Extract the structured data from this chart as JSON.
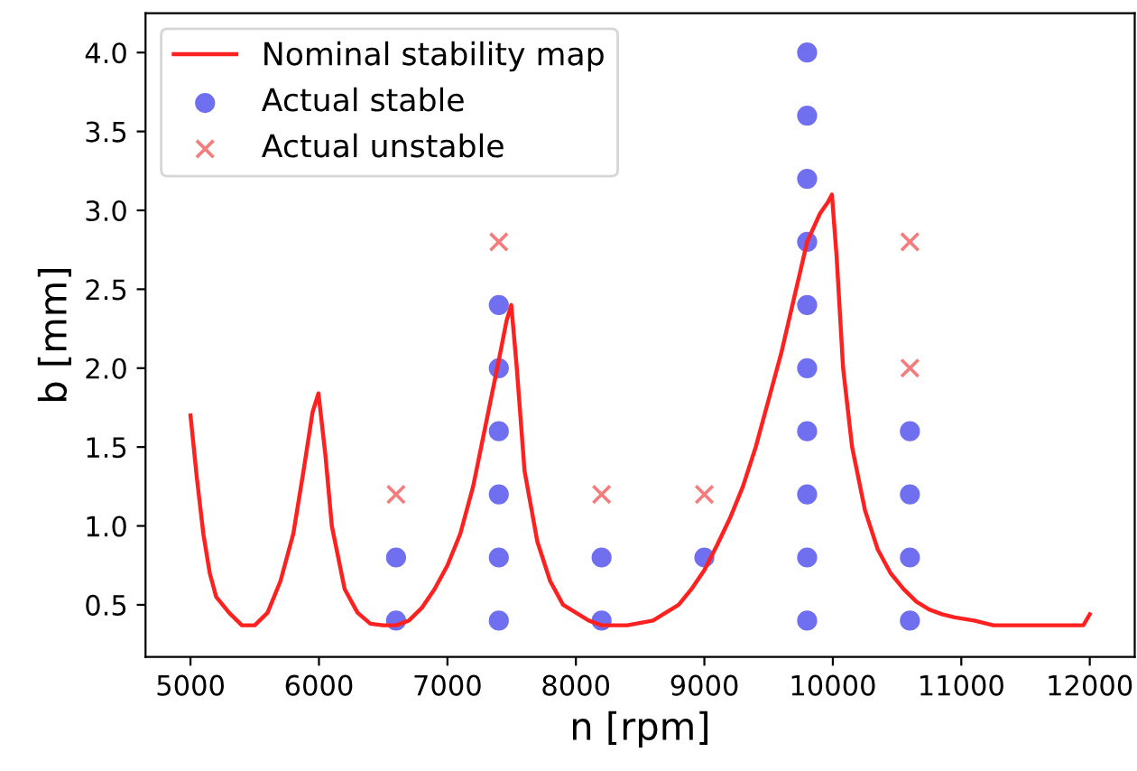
{
  "chart_data": {
    "type": "line",
    "xlabel": "n [rpm]",
    "ylabel": "b [mm]",
    "xlim": [
      4650,
      12350
    ],
    "ylim": [
      0.17,
      4.25
    ],
    "xticks": [
      5000,
      6000,
      7000,
      8000,
      9000,
      10000,
      11000,
      12000
    ],
    "yticks": [
      {
        "value": 0.5,
        "label": "0.5"
      },
      {
        "value": 1.0,
        "label": "1.0"
      },
      {
        "value": 1.5,
        "label": "1.5"
      },
      {
        "value": 2.0,
        "label": "2.0"
      },
      {
        "value": 2.5,
        "label": "2.5"
      },
      {
        "value": 3.0,
        "label": "3.0"
      },
      {
        "value": 3.5,
        "label": "3.5"
      },
      {
        "value": 4.0,
        "label": "4.0"
      }
    ],
    "grid": false,
    "legend": "top left",
    "series": [
      {
        "name": "Nominal stability map",
        "color": "#ff2020",
        "marker": "none",
        "x": [
          5000,
          5050,
          5100,
          5150,
          5200,
          5300,
          5400,
          5500,
          5600,
          5700,
          5800,
          5880,
          5950,
          5996,
          6050,
          6100,
          6200,
          6300,
          6400,
          6500,
          6600,
          6700,
          6800,
          6900,
          7000,
          7100,
          7200,
          7300,
          7400,
          7460,
          7497,
          7540,
          7600,
          7700,
          7800,
          7900,
          8000,
          8100,
          8200,
          8400,
          8600,
          8700,
          8800,
          8900,
          9000,
          9100,
          9200,
          9300,
          9400,
          9500,
          9600,
          9700,
          9800,
          9900,
          9960,
          9993,
          10030,
          10080,
          10150,
          10250,
          10350,
          10450,
          10550,
          10650,
          10750,
          10850,
          10950,
          11100,
          11250,
          11500,
          11800,
          11950,
          12000
        ],
        "values": [
          1.7,
          1.3,
          0.95,
          0.7,
          0.55,
          0.45,
          0.37,
          0.37,
          0.45,
          0.65,
          0.95,
          1.35,
          1.72,
          1.84,
          1.45,
          1.0,
          0.6,
          0.45,
          0.38,
          0.37,
          0.37,
          0.4,
          0.48,
          0.6,
          0.75,
          0.95,
          1.25,
          1.65,
          2.05,
          2.3,
          2.4,
          2.0,
          1.35,
          0.9,
          0.65,
          0.5,
          0.45,
          0.4,
          0.37,
          0.37,
          0.4,
          0.45,
          0.5,
          0.6,
          0.72,
          0.88,
          1.05,
          1.25,
          1.5,
          1.8,
          2.1,
          2.45,
          2.8,
          2.98,
          3.05,
          3.1,
          2.7,
          2.0,
          1.5,
          1.1,
          0.85,
          0.7,
          0.6,
          0.52,
          0.47,
          0.44,
          0.42,
          0.4,
          0.37,
          0.37,
          0.37,
          0.37,
          0.44
        ]
      },
      {
        "name": "Actual stable",
        "type": "scatter",
        "color": "#6f6ff0",
        "marker": "circle",
        "x": [
          6600,
          6600,
          7400,
          7400,
          7400,
          7400,
          7400,
          7400,
          8200,
          8200,
          9000,
          9800,
          9800,
          9800,
          9800,
          9800,
          9800,
          9800,
          9800,
          9800,
          9800,
          10600,
          10600,
          10600,
          10600
        ],
        "values": [
          0.4,
          0.8,
          0.4,
          0.8,
          1.2,
          1.6,
          2.0,
          2.4,
          0.4,
          0.8,
          0.8,
          0.4,
          0.8,
          1.2,
          1.6,
          2.0,
          2.4,
          2.8,
          3.2,
          3.6,
          4.0,
          0.4,
          0.8,
          1.2,
          1.6
        ]
      },
      {
        "name": "Actual unstable",
        "type": "scatter",
        "color": "#f47c7c",
        "marker": "cross",
        "x": [
          6600,
          7400,
          8200,
          9000,
          10600,
          10600
        ],
        "values": [
          1.2,
          2.8,
          1.2,
          1.2,
          2.0,
          2.8
        ]
      }
    ]
  }
}
